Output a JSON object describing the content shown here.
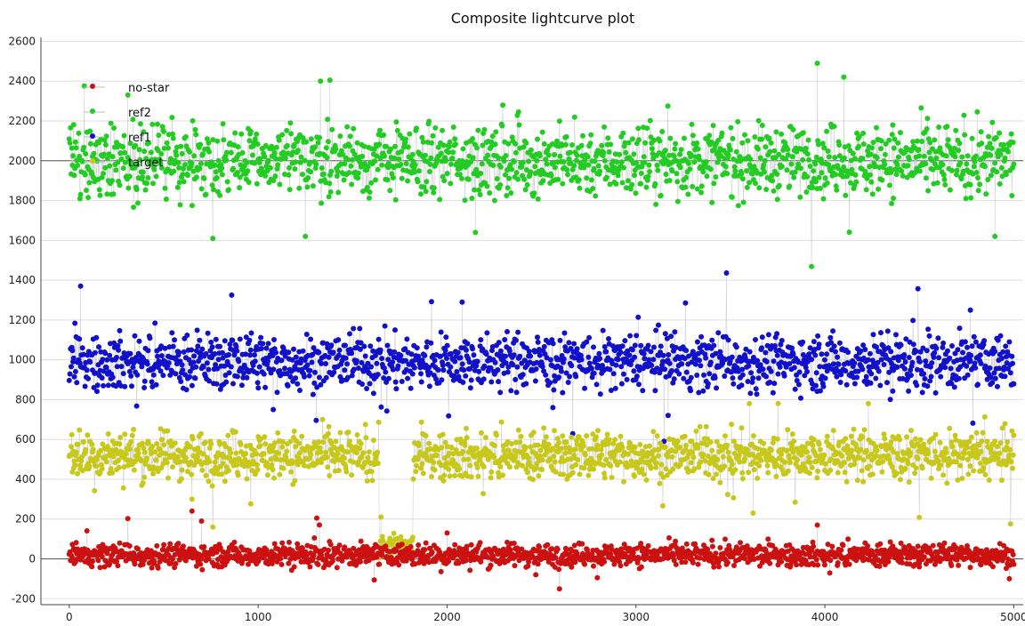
{
  "window": {
    "title": "Composite lightcurve plot"
  },
  "chart_data": {
    "type": "scatter",
    "title": "Composite lightcurve plot",
    "xlabel": "",
    "ylabel": "",
    "xlim": [
      -150,
      5050
    ],
    "ylim": [
      -230,
      2620
    ],
    "x_ticks": [
      0,
      1000,
      2000,
      3000,
      4000,
      5000
    ],
    "y_ticks": [
      -200,
      0,
      200,
      400,
      600,
      800,
      1000,
      1200,
      1400,
      1600,
      1800,
      2000,
      2200,
      2400,
      2600
    ],
    "reference_lines": [
      0,
      2000
    ],
    "grid": "horizontal",
    "legend_position": "top-left",
    "connector_color": "#c8c8c8",
    "series": [
      {
        "name": "no-star",
        "color": "#cc1111",
        "x_range": [
          0,
          5000
        ],
        "mean": 20,
        "spread": 45,
        "gap": null,
        "sample_points": [
          [
            650,
            240
          ],
          [
            700,
            190
          ],
          [
            1310,
            205
          ],
          [
            2000,
            130
          ],
          [
            2470,
            -80
          ],
          [
            3960,
            170
          ],
          [
            4500,
            -40
          ]
        ]
      },
      {
        "name": "ref2",
        "color": "#22cc22",
        "x_range": [
          0,
          5000
        ],
        "mean": 2000,
        "spread": 140,
        "gap": null,
        "sample_points": [
          [
            80,
            2375
          ],
          [
            310,
            2330
          ],
          [
            760,
            1610
          ],
          [
            1250,
            1620
          ],
          [
            1330,
            2400
          ],
          [
            1380,
            2405
          ],
          [
            2150,
            1640
          ],
          [
            3960,
            2490
          ],
          [
            4100,
            2420
          ],
          [
            4900,
            1620
          ]
        ]
      },
      {
        "name": "ref1",
        "color": "#1111cc",
        "x_range": [
          0,
          5000
        ],
        "mean": 990,
        "spread": 110,
        "gap": null,
        "sample_points": [
          [
            60,
            1370
          ],
          [
            860,
            1325
          ],
          [
            1080,
            750
          ],
          [
            2080,
            1290
          ],
          [
            2560,
            760
          ],
          [
            3170,
            720
          ],
          [
            4770,
            1250
          ]
        ]
      },
      {
        "name": "target",
        "color": "#c8c81a",
        "x_range": [
          0,
          5000
        ],
        "mean": 520,
        "spread": 95,
        "gap": [
          1640,
          1820
        ],
        "gap_mean": 60,
        "gap_spread": 50,
        "sample_points": [
          [
            650,
            300
          ],
          [
            1650,
            210
          ],
          [
            3620,
            230
          ],
          [
            3600,
            780
          ],
          [
            4230,
            780
          ]
        ]
      }
    ]
  }
}
